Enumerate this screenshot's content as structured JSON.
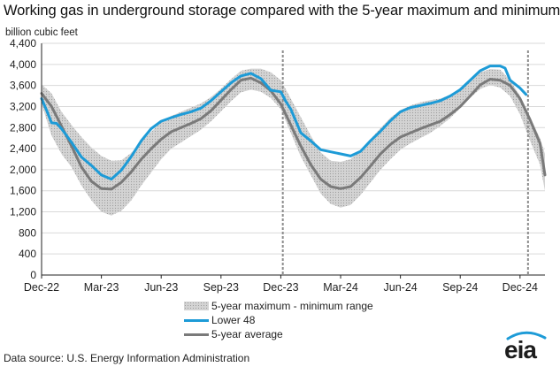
{
  "chart_data": {
    "type": "line",
    "title": "Working gas in underground storage compared with the 5-year maximum and minimum",
    "ylabel": "billion cubic feet",
    "xlabel": "",
    "ylim": [
      0,
      4400
    ],
    "yticks": [
      0,
      400,
      800,
      1200,
      1600,
      2000,
      2400,
      2800,
      3200,
      3600,
      4000,
      4400
    ],
    "ytick_labels": [
      "0",
      "400",
      "800",
      "1,200",
      "1,600",
      "2,000",
      "2,400",
      "2,800",
      "3,200",
      "3,600",
      "4,000",
      "4,400"
    ],
    "x_unit": "months since Dec-2022",
    "xlim": [
      0,
      25.25
    ],
    "xticks": [
      0,
      3,
      6,
      9,
      12,
      15,
      18,
      21,
      24
    ],
    "xtick_labels": [
      "Dec-22",
      "Mar-23",
      "Jun-23",
      "Sep-23",
      "Dec-23",
      "Mar-24",
      "Jun-24",
      "Sep-24",
      "Dec-24"
    ],
    "grid": true,
    "legend_position": "bottom-center",
    "vlines": [
      12.1,
      24.4
    ],
    "band": {
      "name": "5-year maximum - minimum range",
      "x": [
        0,
        0.5,
        1,
        1.5,
        2,
        2.5,
        3,
        3.5,
        4,
        4.5,
        5,
        5.5,
        6,
        6.5,
        7,
        7.5,
        8,
        8.5,
        9,
        9.5,
        10,
        10.5,
        11,
        11.5,
        12,
        12.5,
        13,
        13.5,
        14,
        14.5,
        15,
        15.5,
        16,
        16.5,
        17,
        17.5,
        18,
        18.5,
        19,
        19.5,
        20,
        20.5,
        21,
        21.5,
        22,
        22.5,
        23,
        23.5,
        24,
        24.5,
        25,
        25.25
      ],
      "max": [
        3620,
        3450,
        3100,
        2850,
        2620,
        2420,
        2260,
        2170,
        2180,
        2320,
        2520,
        2720,
        2900,
        3020,
        3100,
        3180,
        3260,
        3380,
        3540,
        3720,
        3880,
        3920,
        3920,
        3850,
        3700,
        3350,
        3000,
        2650,
        2330,
        2170,
        2150,
        2200,
        2380,
        2580,
        2790,
        2990,
        3130,
        3220,
        3280,
        3320,
        3350,
        3420,
        3530,
        3700,
        3850,
        3910,
        3900,
        3700,
        3400,
        3000,
        2600,
        2300
      ],
      "min": [
        3250,
        2650,
        2300,
        2050,
        1700,
        1420,
        1200,
        1130,
        1220,
        1420,
        1700,
        1950,
        2200,
        2400,
        2520,
        2640,
        2760,
        2920,
        3110,
        3300,
        3470,
        3520,
        3480,
        3360,
        3150,
        2700,
        2250,
        1900,
        1550,
        1350,
        1280,
        1330,
        1520,
        1760,
        2000,
        2200,
        2380,
        2500,
        2600,
        2700,
        2830,
        2980,
        3170,
        3370,
        3530,
        3610,
        3560,
        3400,
        3050,
        2550,
        2100,
        1600
      ]
    },
    "series": [
      {
        "name": "5-year average",
        "color": "#7a7a7a",
        "x": [
          0,
          0.5,
          1,
          1.5,
          2,
          2.5,
          3,
          3.5,
          4,
          4.5,
          5,
          5.5,
          6,
          6.5,
          7,
          7.5,
          8,
          8.5,
          9,
          9.5,
          10,
          10.5,
          11,
          11.5,
          12,
          12.5,
          13,
          13.5,
          14,
          14.5,
          15,
          15.5,
          16,
          16.5,
          17,
          17.5,
          18,
          18.5,
          19,
          19.5,
          20,
          20.5,
          21,
          21.5,
          22,
          22.5,
          23,
          23.5,
          24,
          24.5,
          25,
          25.25
        ],
        "values": [
          3450,
          3200,
          2830,
          2450,
          2050,
          1780,
          1640,
          1630,
          1760,
          1960,
          2200,
          2400,
          2580,
          2720,
          2800,
          2880,
          2970,
          3120,
          3320,
          3520,
          3700,
          3740,
          3650,
          3500,
          3250,
          2850,
          2450,
          2100,
          1820,
          1680,
          1640,
          1680,
          1850,
          2070,
          2300,
          2480,
          2620,
          2700,
          2780,
          2850,
          2920,
          3050,
          3200,
          3400,
          3610,
          3720,
          3700,
          3600,
          3350,
          2950,
          2500,
          1900
        ]
      },
      {
        "name": "Lower 48",
        "color": "#1d9bd7",
        "x": [
          0,
          0.25,
          0.5,
          0.75,
          1,
          1.5,
          2,
          2.5,
          3,
          3.5,
          4,
          4.5,
          5,
          5.5,
          6,
          6.5,
          7,
          7.5,
          8,
          8.5,
          9,
          9.5,
          10,
          10.5,
          11,
          11.5,
          12,
          12.25,
          12.5,
          13,
          13.5,
          14,
          14.5,
          15,
          15.5,
          16,
          16.5,
          17,
          17.5,
          18,
          18.5,
          19,
          19.5,
          20,
          20.5,
          21,
          21.5,
          22,
          22.5,
          23,
          23.25,
          23.5,
          24,
          24.3
        ],
        "values": [
          3350,
          3130,
          2890,
          2880,
          2780,
          2520,
          2240,
          2080,
          1900,
          1820,
          1990,
          2250,
          2550,
          2780,
          2920,
          2990,
          3050,
          3100,
          3170,
          3310,
          3480,
          3650,
          3780,
          3830,
          3730,
          3510,
          3480,
          3300,
          3150,
          2700,
          2550,
          2380,
          2340,
          2300,
          2260,
          2350,
          2550,
          2730,
          2930,
          3100,
          3180,
          3220,
          3260,
          3310,
          3400,
          3520,
          3700,
          3880,
          3970,
          3970,
          3930,
          3700,
          3550,
          3430
        ]
      }
    ]
  },
  "legend": {
    "band_label": "5-year maximum - minimum range",
    "lower48_label": "Lower 48",
    "avg_label": "5-year average"
  },
  "footer": {
    "source": "Data source:  U.S. Energy Information Administration",
    "logo": "eia"
  },
  "colors": {
    "band": "#d3d3d3",
    "band_dots": "#9e9e9e",
    "lower48": "#1d9bd7",
    "average": "#7a7a7a",
    "grid": "#d9d9d9",
    "logo_arc": "#1d9bd7"
  }
}
